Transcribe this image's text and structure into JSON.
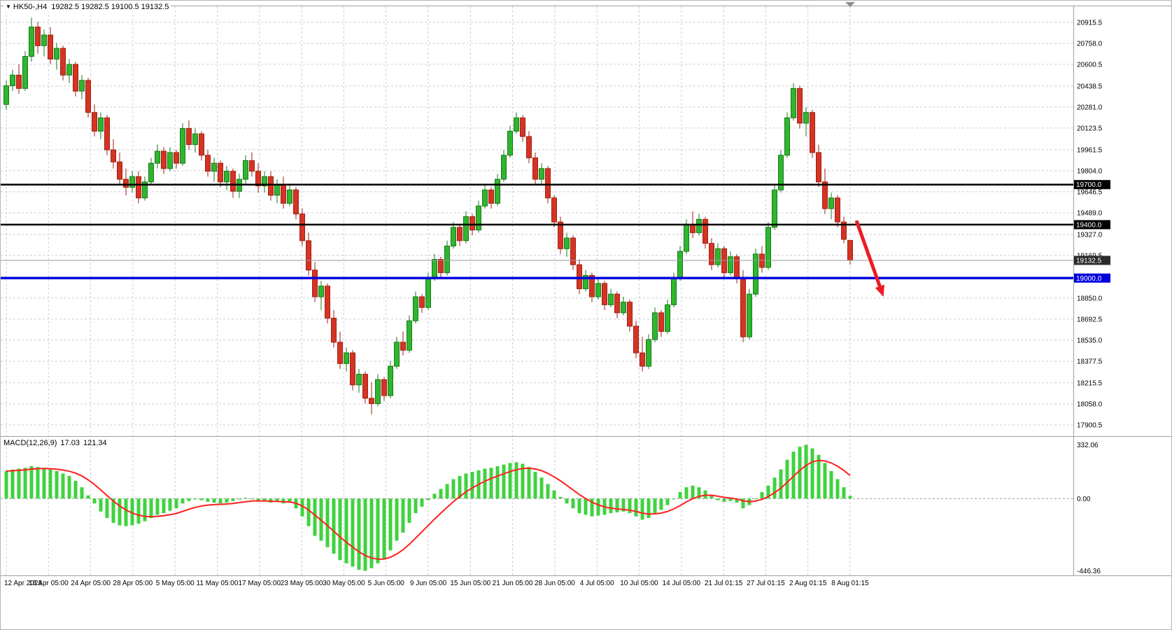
{
  "header": {
    "symbol_timeframe": "HK50-,H4",
    "ohlc_text": "19282.5 19282.5 19100.5 19132.5"
  },
  "colors": {
    "bull_fill": "#2fb62f",
    "bull_stroke": "#187818",
    "bear_fill": "#d63324",
    "bear_stroke": "#9d2212",
    "macd_histogram": "#3fd23f",
    "macd_signal": "#ff1f1f",
    "hline_black": "#000000",
    "hline_blue": "#0000dd",
    "bid_line": "#9a9a9a",
    "bid_box": "#2b2b2b",
    "grid": "#c9cdd6",
    "axis_text": "#000000",
    "border": "#9aa0a6",
    "arrow": "#ec1c24",
    "shift_marker": "#8c8c8c"
  },
  "chart_data": {
    "type": "candlestick",
    "symbol": "HK50-",
    "timeframe": "H4",
    "last_ohlc": {
      "open": 19282.5,
      "high": 19282.5,
      "low": 19100.5,
      "close": 19132.5
    },
    "price_axis_ticks": [
      "20915.5",
      "20758.0",
      "20600.5",
      "20438.5",
      "20281.0",
      "20123.5",
      "19961.5",
      "19804.0",
      "19646.5",
      "19489.0",
      "19327.0",
      "19169.5",
      "18850.0",
      "18692.5",
      "18535.0",
      "18377.5",
      "18215.5",
      "18058.0",
      "17900.5"
    ],
    "time_axis_labels": [
      "12 Apr 2023",
      "18 Apr 05:00",
      "24 Apr 05:00",
      "28 Apr 05:00",
      "5 May 05:00",
      "11 May 05:00",
      "17 May 05:00",
      "23 May 05:00",
      "30 May 05:00",
      "5 Jun 05:00",
      "9 Jun 05:00",
      "15 Jun 05:00",
      "21 Jun 05:00",
      "28 Jun 05:00",
      "4 Jul 05:00",
      "10 Jul 05:00",
      "14 Jul 05:00",
      "21 Jul 01:15",
      "27 Jul 01:15",
      "2 Aug 01:15",
      "8 Aug 01:15"
    ],
    "horizontal_lines": [
      {
        "price": 19700.0,
        "label": "19700.0",
        "color_key": "black"
      },
      {
        "price": 19400.0,
        "label": "19400.0",
        "color_key": "black"
      },
      {
        "price": 19000.0,
        "label": "19000.0",
        "color_key": "blue"
      }
    ],
    "bid": {
      "price": 19132.5,
      "label": "19132.5"
    },
    "candles_ohlc": [
      [
        20300,
        20480,
        20260,
        20440
      ],
      [
        20440,
        20560,
        20400,
        20520
      ],
      [
        20520,
        20600,
        20380,
        20420
      ],
      [
        20420,
        20700,
        20400,
        20660
      ],
      [
        20660,
        20950,
        20620,
        20880
      ],
      [
        20880,
        20920,
        20680,
        20740
      ],
      [
        20740,
        20860,
        20660,
        20820
      ],
      [
        20820,
        20880,
        20600,
        20640
      ],
      [
        20640,
        20760,
        20560,
        20720
      ],
      [
        20720,
        20740,
        20480,
        20520
      ],
      [
        20520,
        20640,
        20460,
        20600
      ],
      [
        20600,
        20620,
        20360,
        20400
      ],
      [
        20400,
        20520,
        20340,
        20480
      ],
      [
        20480,
        20500,
        20200,
        20240
      ],
      [
        20240,
        20300,
        20060,
        20100
      ],
      [
        20100,
        20240,
        20040,
        20200
      ],
      [
        20200,
        20220,
        19920,
        19960
      ],
      [
        19960,
        20040,
        19820,
        19870
      ],
      [
        19870,
        19940,
        19700,
        19740
      ],
      [
        19740,
        19820,
        19620,
        19680
      ],
      [
        19680,
        19800,
        19640,
        19760
      ],
      [
        19760,
        19800,
        19560,
        19600
      ],
      [
        19600,
        19760,
        19580,
        19720
      ],
      [
        19720,
        19900,
        19700,
        19860
      ],
      [
        19860,
        20000,
        19820,
        19950
      ],
      [
        19950,
        19980,
        19780,
        19820
      ],
      [
        19820,
        19980,
        19800,
        19940
      ],
      [
        19940,
        19960,
        19820,
        19860
      ],
      [
        19860,
        20160,
        19840,
        20120
      ],
      [
        20120,
        20180,
        19960,
        20000
      ],
      [
        20000,
        20120,
        19940,
        20080
      ],
      [
        20080,
        20100,
        19880,
        19920
      ],
      [
        19920,
        19960,
        19760,
        19800
      ],
      [
        19800,
        19900,
        19720,
        19860
      ],
      [
        19860,
        19880,
        19680,
        19720
      ],
      [
        19720,
        19840,
        19660,
        19800
      ],
      [
        19800,
        19820,
        19600,
        19650
      ],
      [
        19650,
        19780,
        19600,
        19740
      ],
      [
        19740,
        19920,
        19700,
        19880
      ],
      [
        19880,
        19940,
        19760,
        19800
      ],
      [
        19800,
        19860,
        19640,
        19690
      ],
      [
        19690,
        19800,
        19640,
        19760
      ],
      [
        19760,
        19800,
        19580,
        19620
      ],
      [
        19620,
        19740,
        19560,
        19700
      ],
      [
        19700,
        19760,
        19520,
        19560
      ],
      [
        19560,
        19700,
        19540,
        19660
      ],
      [
        19660,
        19680,
        19440,
        19480
      ],
      [
        19480,
        19520,
        19240,
        19280
      ],
      [
        19280,
        19340,
        19020,
        19060
      ],
      [
        19060,
        19120,
        18820,
        18860
      ],
      [
        18860,
        18980,
        18760,
        18940
      ],
      [
        18940,
        18960,
        18660,
        18700
      ],
      [
        18700,
        18760,
        18480,
        18520
      ],
      [
        18520,
        18600,
        18320,
        18360
      ],
      [
        18360,
        18480,
        18300,
        18440
      ],
      [
        18440,
        18460,
        18160,
        18200
      ],
      [
        18200,
        18320,
        18140,
        18280
      ],
      [
        18280,
        18300,
        18060,
        18100
      ],
      [
        18100,
        18220,
        17980,
        18060
      ],
      [
        18060,
        18280,
        18040,
        18240
      ],
      [
        18240,
        18260,
        18080,
        18120
      ],
      [
        18120,
        18380,
        18100,
        18340
      ],
      [
        18340,
        18560,
        18320,
        18520
      ],
      [
        18520,
        18600,
        18420,
        18460
      ],
      [
        18460,
        18720,
        18440,
        18680
      ],
      [
        18680,
        18900,
        18660,
        18860
      ],
      [
        18860,
        18880,
        18740,
        18780
      ],
      [
        18780,
        19040,
        18760,
        19000
      ],
      [
        19000,
        19180,
        18980,
        19140
      ],
      [
        19140,
        19160,
        19000,
        19040
      ],
      [
        19040,
        19280,
        19020,
        19240
      ],
      [
        19240,
        19420,
        19220,
        19380
      ],
      [
        19380,
        19400,
        19240,
        19280
      ],
      [
        19280,
        19500,
        19260,
        19460
      ],
      [
        19460,
        19480,
        19320,
        19360
      ],
      [
        19360,
        19580,
        19340,
        19540
      ],
      [
        19540,
        19700,
        19520,
        19660
      ],
      [
        19660,
        19680,
        19520,
        19560
      ],
      [
        19560,
        19780,
        19540,
        19740
      ],
      [
        19740,
        19960,
        19720,
        19920
      ],
      [
        19920,
        20140,
        19900,
        20100
      ],
      [
        20100,
        20240,
        20080,
        20200
      ],
      [
        20200,
        20220,
        20020,
        20060
      ],
      [
        20060,
        20100,
        19860,
        19900
      ],
      [
        19900,
        19940,
        19700,
        19740
      ],
      [
        19740,
        19860,
        19700,
        19820
      ],
      [
        19820,
        19840,
        19560,
        19600
      ],
      [
        19600,
        19620,
        19380,
        19420
      ],
      [
        19420,
        19460,
        19180,
        19220
      ],
      [
        19220,
        19340,
        19160,
        19300
      ],
      [
        19300,
        19320,
        19060,
        19100
      ],
      [
        19100,
        19140,
        18880,
        18920
      ],
      [
        18920,
        19060,
        18900,
        19020
      ],
      [
        19020,
        19040,
        18820,
        18860
      ],
      [
        18860,
        19000,
        18840,
        18960
      ],
      [
        18960,
        18980,
        18760,
        18800
      ],
      [
        18800,
        18920,
        18780,
        18880
      ],
      [
        18880,
        18900,
        18700,
        18740
      ],
      [
        18740,
        18860,
        18720,
        18820
      ],
      [
        18820,
        18840,
        18600,
        18640
      ],
      [
        18640,
        18680,
        18400,
        18440
      ],
      [
        18440,
        18560,
        18300,
        18340
      ],
      [
        18340,
        18580,
        18320,
        18540
      ],
      [
        18540,
        18780,
        18520,
        18740
      ],
      [
        18740,
        18760,
        18560,
        18600
      ],
      [
        18600,
        18840,
        18580,
        18800
      ],
      [
        18800,
        19040,
        18780,
        19000
      ],
      [
        19000,
        19240,
        18980,
        19200
      ],
      [
        19200,
        19440,
        19180,
        19400
      ],
      [
        19400,
        19500,
        19300,
        19340
      ],
      [
        19340,
        19480,
        19320,
        19440
      ],
      [
        19440,
        19460,
        19220,
        19260
      ],
      [
        19260,
        19300,
        19060,
        19100
      ],
      [
        19100,
        19260,
        19080,
        19220
      ],
      [
        19220,
        19240,
        19000,
        19040
      ],
      [
        19040,
        19200,
        19020,
        19160
      ],
      [
        19160,
        19180,
        18960,
        19000
      ],
      [
        19000,
        19060,
        18520,
        18560
      ],
      [
        18560,
        18920,
        18540,
        18880
      ],
      [
        18880,
        19220,
        18860,
        19180
      ],
      [
        19180,
        19240,
        19040,
        19080
      ],
      [
        19080,
        19420,
        19060,
        19380
      ],
      [
        19380,
        19700,
        19360,
        19660
      ],
      [
        19660,
        19960,
        19640,
        19920
      ],
      [
        19920,
        20240,
        19900,
        20200
      ],
      [
        20200,
        20460,
        20180,
        20420
      ],
      [
        20420,
        20440,
        20120,
        20160
      ],
      [
        20160,
        20280,
        20060,
        20240
      ],
      [
        20240,
        20260,
        19900,
        19940
      ],
      [
        19940,
        20000,
        19680,
        19720
      ],
      [
        19720,
        19820,
        19480,
        19520
      ],
      [
        19520,
        19640,
        19440,
        19600
      ],
      [
        19600,
        19620,
        19380,
        19420
      ],
      [
        19420,
        19460,
        19260,
        19290
      ],
      [
        19282.5,
        19282.5,
        19100.5,
        19132.5
      ]
    ],
    "macd": {
      "label": "MACD(12,26,9)",
      "main_value": "17.03",
      "signal_value": "121.34",
      "axis_ticks": [
        "332.06",
        "0.00",
        "-446.36"
      ],
      "signal_note": "red signal line = 9-period EMA of histogram",
      "histogram": [
        170,
        180,
        185,
        190,
        200,
        195,
        190,
        180,
        170,
        155,
        140,
        110,
        70,
        20,
        -30,
        -80,
        -120,
        -150,
        -165,
        -170,
        -165,
        -155,
        -140,
        -120,
        -100,
        -90,
        -75,
        -60,
        -30,
        -15,
        -5,
        -10,
        -20,
        -25,
        -30,
        -25,
        -15,
        -5,
        5,
        0,
        -10,
        -15,
        -25,
        -20,
        -30,
        -25,
        -60,
        -110,
        -170,
        -230,
        -260,
        -300,
        -340,
        -380,
        -400,
        -420,
        -440,
        -446,
        -430,
        -400,
        -370,
        -320,
        -260,
        -210,
        -150,
        -90,
        -50,
        -10,
        30,
        60,
        90,
        120,
        140,
        155,
        165,
        175,
        185,
        190,
        200,
        210,
        220,
        225,
        215,
        195,
        165,
        130,
        90,
        50,
        10,
        -30,
        -60,
        -90,
        -100,
        -110,
        -105,
        -100,
        -90,
        -85,
        -80,
        -90,
        -110,
        -130,
        -120,
        -90,
        -70,
        -40,
        0,
        40,
        70,
        80,
        70,
        50,
        20,
        -10,
        -20,
        -15,
        -25,
        -60,
        -40,
        0,
        40,
        80,
        130,
        180,
        240,
        290,
        320,
        332,
        310,
        270,
        220,
        170,
        120,
        70,
        17
      ]
    },
    "annotation_arrow": {
      "from": {
        "bar_offset": 1,
        "price": 19430
      },
      "to": {
        "bar_offset": 5.3,
        "price": 18860
      }
    }
  }
}
